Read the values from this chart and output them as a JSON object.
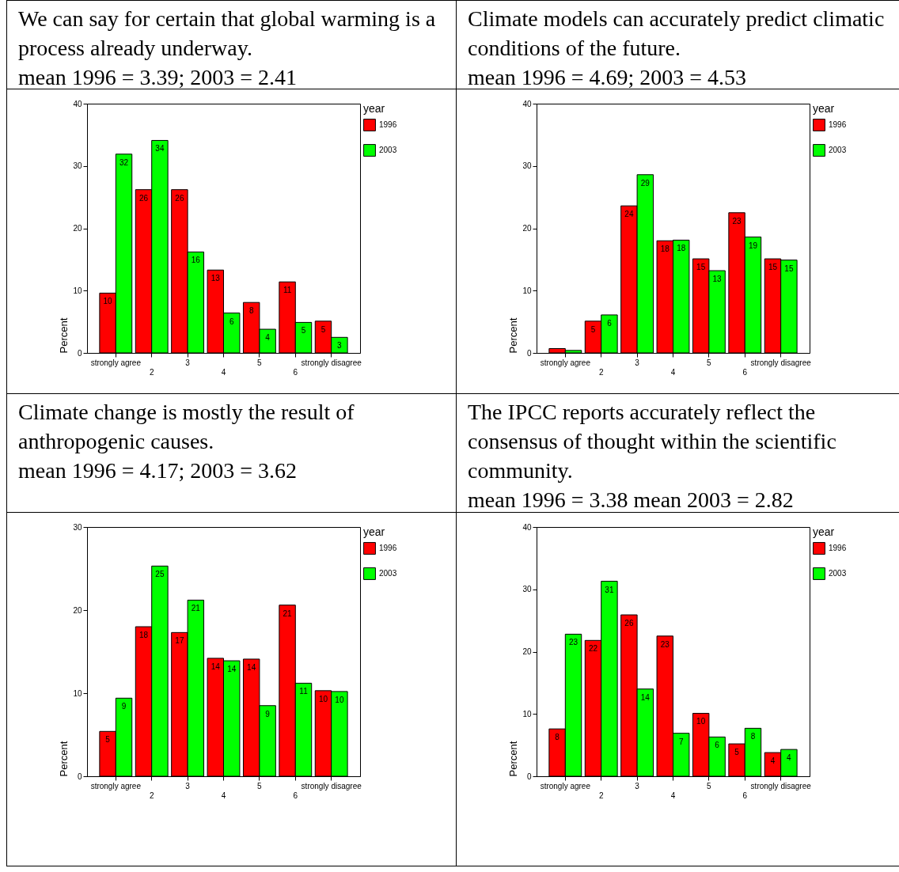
{
  "chart_data": [
    {
      "type": "bar",
      "title": "We can say for certain that global warming is a process already underway.",
      "subtitle": "mean 1996 = 3.39; 2003 = 2.41",
      "ylabel": "Percent",
      "legend_title": "year",
      "legend": "right",
      "grid": false,
      "categories": [
        "strongly agree",
        "2",
        "3",
        "4",
        "5",
        "6",
        "strongly disagree"
      ],
      "ylim": [
        0,
        40
      ],
      "yticks": [
        0,
        10,
        20,
        30,
        40
      ],
      "series": [
        {
          "name": "1996",
          "color": "#ff0000",
          "values": [
            9.6,
            26.2,
            26.2,
            13.3,
            8.1,
            11.4,
            5.1
          ],
          "value_labels": [
            "10",
            "26",
            "26",
            "13",
            "8",
            "11",
            "5"
          ]
        },
        {
          "name": "2003",
          "color": "#00ff00",
          "values": [
            31.9,
            34.1,
            16.2,
            6.4,
            3.8,
            4.9,
            2.5
          ],
          "value_labels": [
            "32",
            "34",
            "16",
            "6",
            "4",
            "5",
            "3"
          ]
        }
      ]
    },
    {
      "type": "bar",
      "title": "Climate models can accurately predict climatic conditions of the future.",
      "subtitle": "mean 1996 = 4.69; 2003 = 4.53",
      "ylabel": "Percent",
      "legend_title": "year",
      "legend": "right",
      "grid": false,
      "categories": [
        "strongly agree",
        "2",
        "3",
        "4",
        "5",
        "6",
        "strongly disagree"
      ],
      "ylim": [
        0,
        40
      ],
      "yticks": [
        0,
        10,
        20,
        30,
        40
      ],
      "series": [
        {
          "name": "1996",
          "color": "#ff0000",
          "values": [
            0.7,
            5.1,
            23.6,
            18.0,
            15.1,
            22.5,
            15.1
          ],
          "value_labels": [
            null,
            "5",
            "24",
            "18",
            "15",
            "23",
            "15"
          ]
        },
        {
          "name": "2003",
          "color": "#00ff00",
          "values": [
            0.4,
            6.1,
            28.6,
            18.1,
            13.2,
            18.6,
            14.9
          ],
          "value_labels": [
            null,
            "6",
            "29",
            "18",
            "13",
            "19",
            "15"
          ]
        }
      ]
    },
    {
      "type": "bar",
      "title": "Climate change is mostly the result of anthropogenic causes.",
      "subtitle": "mean 1996 = 4.17; 2003 = 3.62",
      "ylabel": "Percent",
      "legend_title": "year",
      "legend": "right",
      "grid": false,
      "categories": [
        "strongly agree",
        "2",
        "3",
        "4",
        "5",
        "6",
        "strongly disagree"
      ],
      "ylim": [
        0,
        30
      ],
      "yticks": [
        0,
        10,
        20,
        30
      ],
      "series": [
        {
          "name": "1996",
          "color": "#ff0000",
          "values": [
            5.4,
            18.0,
            17.3,
            14.2,
            14.1,
            20.6,
            10.3
          ],
          "value_labels": [
            "5",
            "18",
            "17",
            "14",
            "14",
            "21",
            "10"
          ]
        },
        {
          "name": "2003",
          "color": "#00ff00",
          "values": [
            9.4,
            25.3,
            21.2,
            13.9,
            8.5,
            11.2,
            10.2
          ],
          "value_labels": [
            "9",
            "25",
            "21",
            "14",
            "9",
            "11",
            "10"
          ]
        }
      ]
    },
    {
      "type": "bar",
      "title": "The IPCC reports accurately reflect the consensus of thought within the scientific community.",
      "subtitle": "mean 1996 = 3.38 mean 2003 = 2.82",
      "ylabel": "Percent",
      "legend_title": "year",
      "legend": "right",
      "grid": false,
      "categories": [
        "strongly agree",
        "2",
        "3",
        "4",
        "5",
        "6",
        "strongly disagree"
      ],
      "ylim": [
        0,
        40
      ],
      "yticks": [
        0,
        10,
        20,
        30,
        40
      ],
      "series": [
        {
          "name": "1996",
          "color": "#ff0000",
          "values": [
            7.6,
            21.8,
            25.9,
            22.5,
            10.1,
            5.2,
            3.8
          ],
          "value_labels": [
            "8",
            "22",
            "26",
            "23",
            "10",
            "5",
            "4"
          ]
        },
        {
          "name": "2003",
          "color": "#00ff00",
          "values": [
            22.8,
            31.3,
            14.0,
            6.9,
            6.3,
            7.7,
            4.3
          ],
          "value_labels": [
            "23",
            "31",
            "14",
            "7",
            "6",
            "8",
            "4"
          ]
        }
      ]
    }
  ]
}
